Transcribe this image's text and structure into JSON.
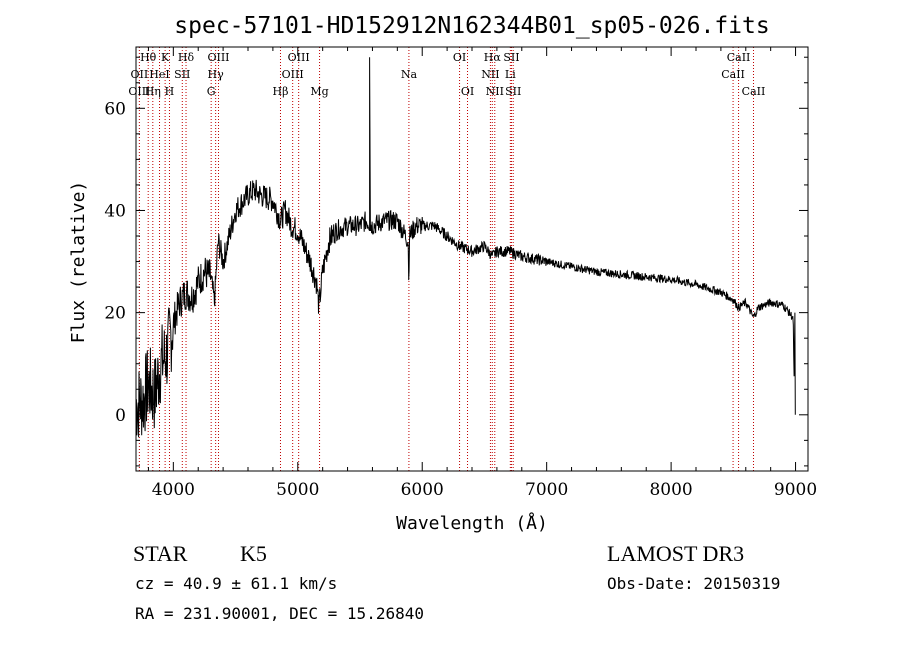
{
  "chart_data": {
    "type": "line",
    "title": "spec-57101-HD152912N162344B01_sp05-026.fits",
    "xlabel": "Wavelength (Å)",
    "ylabel": "Flux (relative)",
    "xlim": [
      3700,
      9100
    ],
    "ylim": [
      -11,
      72
    ],
    "xticks": [
      4000,
      5000,
      6000,
      7000,
      8000,
      9000
    ],
    "yticks": [
      0,
      20,
      40,
      60
    ],
    "spectrum_anchors": {
      "x": [
        3700,
        3760,
        3800,
        3850,
        3900,
        3950,
        4000,
        4050,
        4100,
        4150,
        4200,
        4250,
        4300,
        4330,
        4360,
        4400,
        4450,
        4500,
        4600,
        4650,
        4700,
        4800,
        4861,
        4900,
        4950,
        5000,
        5050,
        5100,
        5150,
        5170,
        5183,
        5200,
        5250,
        5300,
        5400,
        5500,
        5550,
        5600,
        5700,
        5800,
        5889,
        5892,
        5896,
        5950,
        6000,
        6100,
        6200,
        6300,
        6400,
        6500,
        6563,
        6600,
        6700,
        6800,
        7000,
        7200,
        7400,
        7600,
        7800,
        8000,
        8200,
        8400,
        8500,
        8542,
        8600,
        8662,
        8700,
        8800,
        8900,
        8980,
        8990,
        9000
      ],
      "y": [
        2,
        3,
        6,
        4,
        10,
        12,
        18,
        22,
        24,
        23,
        26,
        28,
        27,
        22,
        34,
        30,
        35,
        40,
        43,
        44,
        43,
        42,
        38,
        40,
        37,
        36,
        33,
        30,
        26,
        21,
        24,
        28,
        34,
        36,
        37,
        37,
        38,
        37,
        38,
        38,
        34,
        22,
        35,
        37,
        37,
        37,
        35,
        33,
        32,
        33,
        31,
        32,
        32,
        31,
        30,
        29,
        28,
        27.5,
        27,
        26.5,
        25.5,
        24,
        22.5,
        21,
        22,
        19,
        21,
        22,
        21.5,
        19,
        5,
        0
      ]
    },
    "emission_spike": {
      "x": 5577,
      "peak": 70
    },
    "spectral_lines": [
      {
        "label": "Hθ",
        "x": 3798,
        "row": 1
      },
      {
        "label": "K",
        "x": 3934,
        "row": 1
      },
      {
        "label": "Hδ",
        "x": 4102,
        "row": 1
      },
      {
        "label": "OIII",
        "x": 4363,
        "row": 1
      },
      {
        "label": "OIII",
        "x": 5007,
        "row": 1
      },
      {
        "label": "OI",
        "x": 6300,
        "row": 1
      },
      {
        "label": "Hα",
        "x": 6563,
        "row": 1
      },
      {
        "label": "SII",
        "x": 6717,
        "row": 1
      },
      {
        "label": "CaII",
        "x": 8542,
        "row": 1
      },
      {
        "label": "OII",
        "x": 3727,
        "row": 2
      },
      {
        "label": "HeI",
        "x": 3889,
        "row": 2
      },
      {
        "label": "SII",
        "x": 4072,
        "row": 2
      },
      {
        "label": "Hγ",
        "x": 4340,
        "row": 2
      },
      {
        "label": "OIII",
        "x": 4959,
        "row": 2
      },
      {
        "label": "Na",
        "x": 5893,
        "row": 2
      },
      {
        "label": "NII",
        "x": 6548,
        "row": 2
      },
      {
        "label": "Li",
        "x": 6708,
        "row": 2
      },
      {
        "label": "CaII",
        "x": 8498,
        "row": 2
      },
      {
        "label": "OIII",
        "x": 3727,
        "row": 3
      },
      {
        "label": "Hη",
        "x": 3835,
        "row": 3
      },
      {
        "label": "H",
        "x": 3969,
        "row": 3
      },
      {
        "label": "G",
        "x": 4304,
        "row": 3
      },
      {
        "label": "Hβ",
        "x": 4861,
        "row": 3
      },
      {
        "label": "Mg",
        "x": 5175,
        "row": 3
      },
      {
        "label": "OI",
        "x": 6364,
        "row": 3
      },
      {
        "label": "NII",
        "x": 6583,
        "row": 3
      },
      {
        "label": "SII",
        "x": 6731,
        "row": 3
      },
      {
        "label": "CaII",
        "x": 8662,
        "row": 3
      }
    ]
  },
  "info": {
    "object_class": "STAR",
    "subclass": "K5",
    "survey": "LAMOST DR3",
    "cz": "cz = 40.9 ± 61.1 km/s",
    "obs_date": "Obs-Date: 20150319",
    "coords": "RA = 231.90001, DEC =  15.26840"
  },
  "colors": {
    "line_marker": "#c00000",
    "spectrum": "#000000",
    "axes": "#000000"
  }
}
